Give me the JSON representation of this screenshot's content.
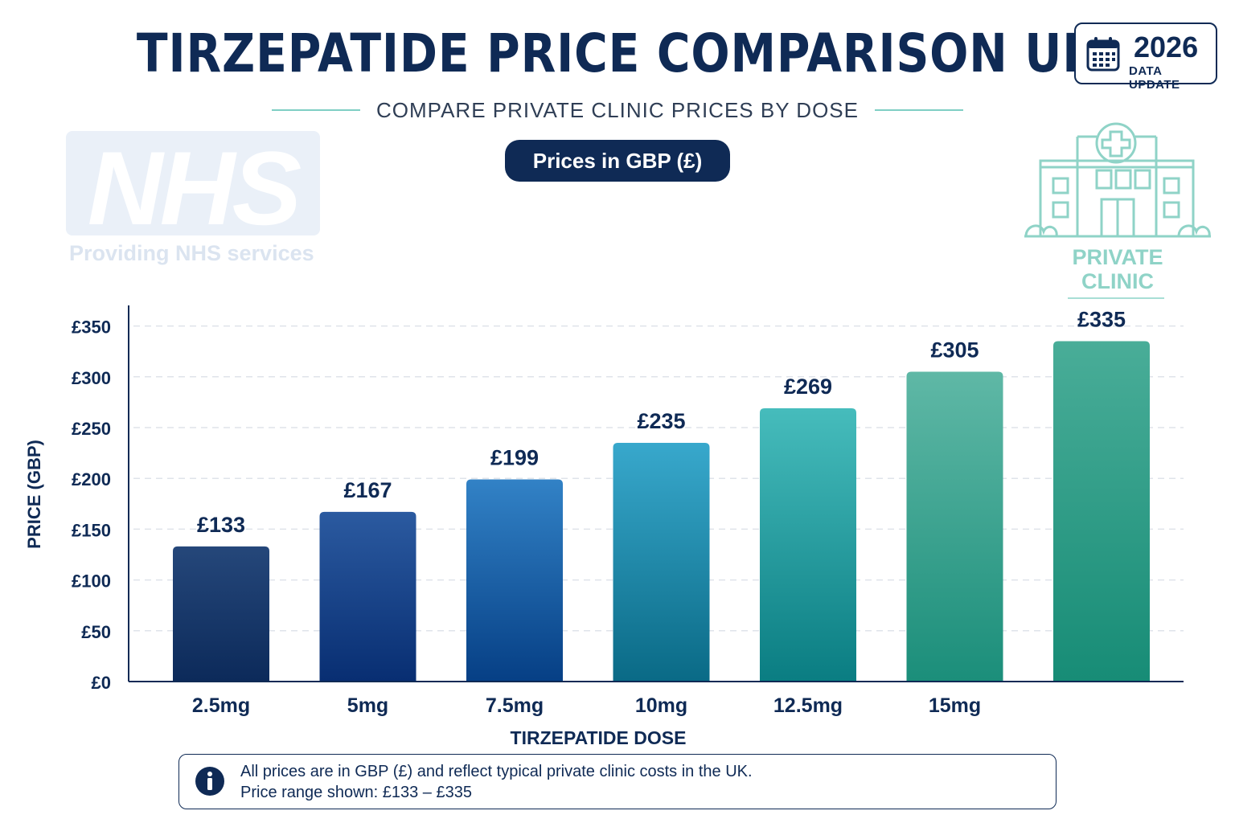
{
  "header": {
    "title": "TIRZEPATIDE PRICE COMPARISON UK",
    "subtitle": "COMPARE PRIVATE CLINIC PRICES BY DOSE",
    "currency_pill": "Prices in GBP (£)"
  },
  "badge": {
    "year": "2026",
    "label": "DATA UPDATE",
    "icon": "calendar-icon"
  },
  "nhs": {
    "logo_text": "NHS",
    "tagline": "Providing NHS services"
  },
  "clinic": {
    "label_line1": "PRIVATE",
    "label_line2": "CLINIC",
    "icon": "hospital-icon"
  },
  "colors": {
    "navy": "#0f2a55",
    "teal_light": "#8fd3c7"
  },
  "chart_data": {
    "type": "bar",
    "categories": [
      "2.5mg",
      "5mg",
      "7.5mg",
      "10mg",
      "12.5mg",
      "15mg",
      ""
    ],
    "values": [
      133,
      167,
      199,
      235,
      269,
      305,
      335
    ],
    "value_labels": [
      "£133",
      "£167",
      "£199",
      "£235",
      "£269",
      "£305",
      "£335"
    ],
    "xlabel": "TIRZEPATIDE DOSE",
    "ylabel": "PRICE (GBP)",
    "ylim": [
      0,
      350
    ],
    "yticks": [
      0,
      50,
      100,
      150,
      200,
      250,
      300,
      350
    ],
    "ytick_labels": [
      "£0",
      "£50",
      "£100",
      "£150",
      "£200",
      "£250",
      "£300",
      "£350"
    ],
    "grid": true,
    "bar_colors": [
      [
        "#25477a",
        "#0c2a5a"
      ],
      [
        "#2b5aa0",
        "#082e72"
      ],
      [
        "#3282c6",
        "#063f85"
      ],
      [
        "#38a8cc",
        "#0a6a86"
      ],
      [
        "#46bcbc",
        "#0a7d82"
      ],
      [
        "#5fb8a6",
        "#1b8e7a"
      ],
      [
        "#49ad98",
        "#178c76"
      ]
    ]
  },
  "footnote": {
    "icon": "info-icon",
    "line1": "All prices are in GBP (£) and reflect typical private clinic costs in the UK.",
    "line2": "Price range shown: £133 – £335"
  }
}
